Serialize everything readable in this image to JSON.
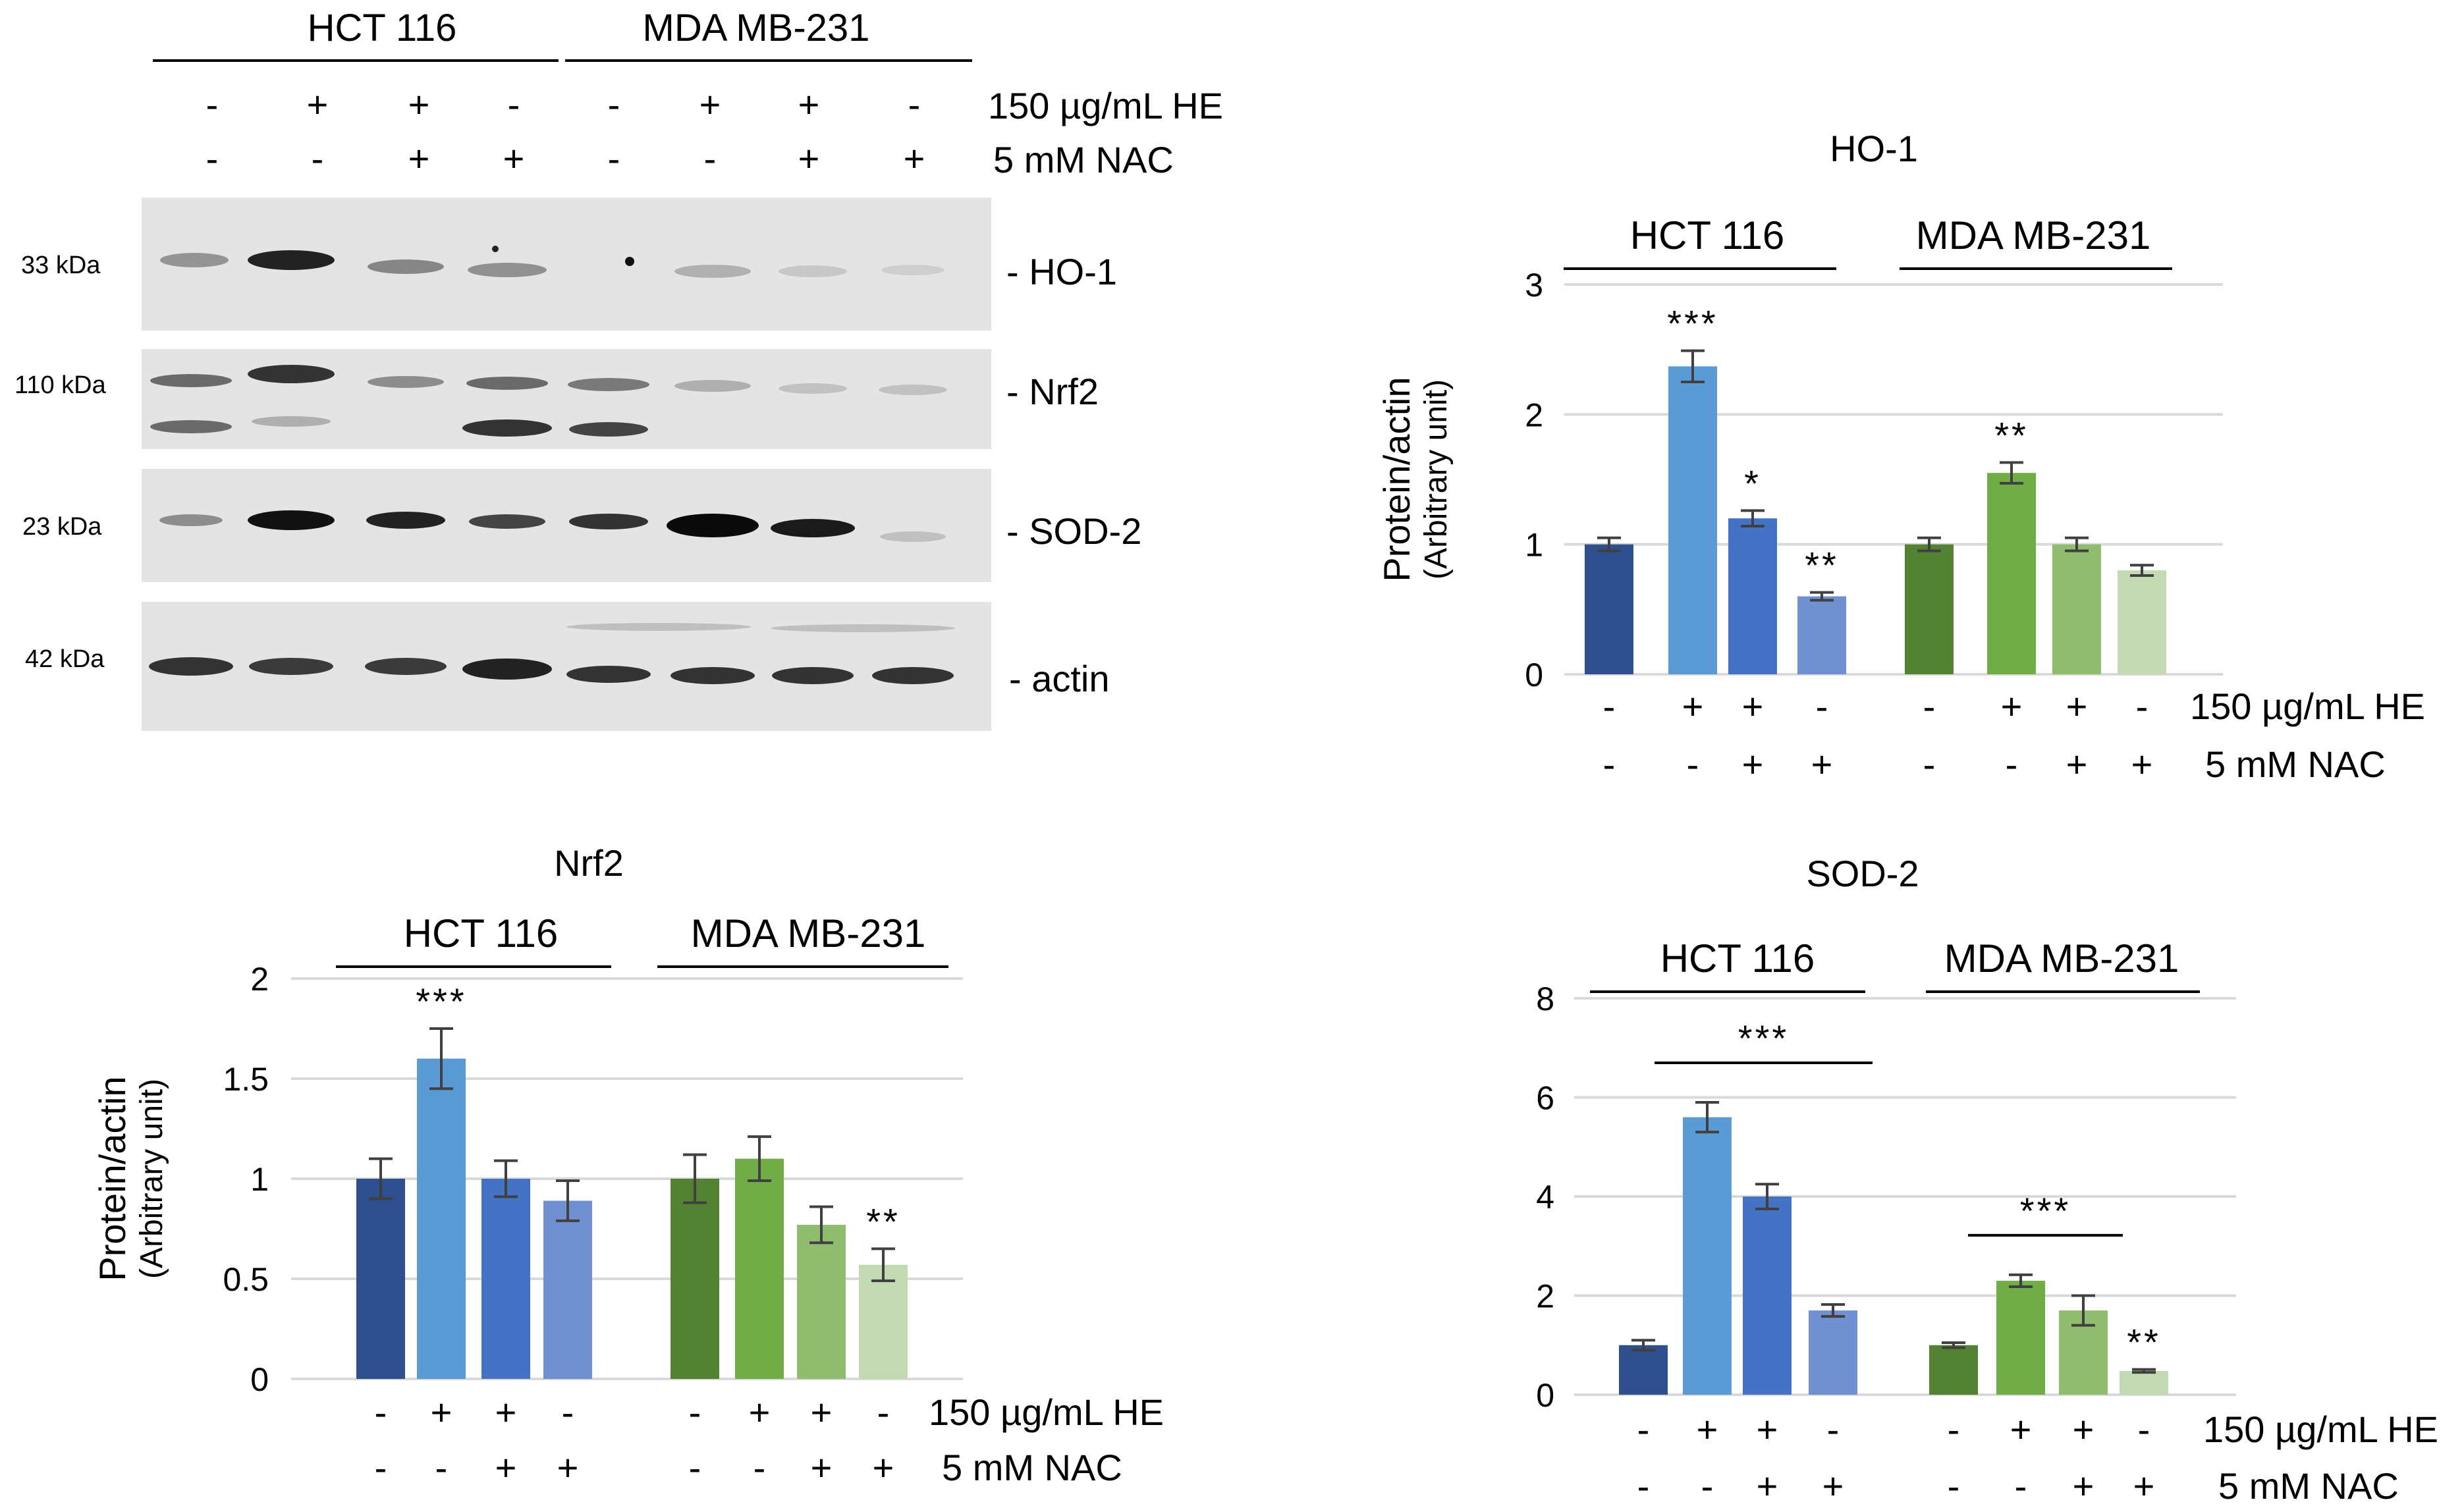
{
  "colors": {
    "hct": [
      "#2F4F8F",
      "#5B9BD5",
      "#4472C4",
      "#7190D2"
    ],
    "mda": [
      "#548235",
      "#70AD47",
      "#8FBC6E",
      "#C3D9B3"
    ],
    "axis": "#d9d9d9",
    "text": "#000000",
    "blot_bg": "#e6e6e6"
  },
  "blot": {
    "cell_lines": [
      "HCT 116",
      "MDA MB-231"
    ],
    "he_row": [
      "-",
      "+",
      "+",
      "-",
      "-",
      "+",
      "+",
      "-"
    ],
    "nac_row": [
      "-",
      "-",
      "+",
      "+",
      "-",
      "-",
      "+",
      "+"
    ],
    "he_label": "150 µg/mL HE",
    "nac_label": "5 mM NAC",
    "rows": [
      {
        "kda": "33 kDa",
        "protein": "- HO-1"
      },
      {
        "kda": "110 kDa",
        "protein": "- Nrf2"
      },
      {
        "kda": "23 kDa",
        "protein": "- SOD-2"
      },
      {
        "kda": "42 kDa",
        "protein": "- actin"
      }
    ]
  },
  "chart_data": [
    {
      "type": "bar",
      "title": "HO-1",
      "ylabel_1": "Protein/actin",
      "ylabel_2": "(Arbitrary unit)",
      "ylim": [
        0,
        3
      ],
      "yticks": [
        "0",
        "1",
        "2",
        "3"
      ],
      "groups": [
        "HCT 116",
        "MDA MB-231"
      ],
      "he_row": [
        "-",
        "+",
        "+",
        "-",
        "-",
        "+",
        "+",
        "-"
      ],
      "nac_row": [
        "-",
        "-",
        "+",
        "+",
        "-",
        "-",
        "+",
        "+"
      ],
      "he_label": "150 µg/mL HE",
      "nac_label": "5 mM NAC",
      "values": [
        1.0,
        2.37,
        1.2,
        0.6,
        1.0,
        1.55,
        1.0,
        0.8
      ],
      "errors": [
        0.05,
        0.12,
        0.06,
        0.03,
        0.05,
        0.08,
        0.05,
        0.04
      ],
      "sig": [
        "",
        "***",
        "*",
        "**",
        "",
        "**",
        "",
        ""
      ]
    },
    {
      "type": "bar",
      "title": "Nrf2",
      "ylabel_1": "Protein/actin",
      "ylabel_2": "(Arbitrary unit)",
      "ylim": [
        0,
        2
      ],
      "yticks": [
        "0",
        "0.5",
        "1",
        "1.5",
        "2"
      ],
      "groups": [
        "HCT 116",
        "MDA MB-231"
      ],
      "he_row": [
        "-",
        "+",
        "+",
        "-",
        "-",
        "+",
        "+",
        "-"
      ],
      "nac_row": [
        "-",
        "-",
        "+",
        "+",
        "-",
        "-",
        "+",
        "+"
      ],
      "he_label": "150 µg/mL HE",
      "nac_label": "5 mM NAC",
      "values": [
        1.0,
        1.6,
        1.0,
        0.89,
        1.0,
        1.1,
        0.77,
        0.57
      ],
      "errors": [
        0.1,
        0.15,
        0.09,
        0.1,
        0.12,
        0.11,
        0.09,
        0.08
      ],
      "sig": [
        "",
        "***",
        "",
        "",
        "",
        "",
        "",
        "**"
      ]
    },
    {
      "type": "bar",
      "title": "SOD-2",
      "ylabel_1": "",
      "ylabel_2": "",
      "ylim": [
        0,
        8
      ],
      "yticks": [
        "0",
        "2",
        "4",
        "6",
        "8"
      ],
      "groups": [
        "HCT 116",
        "MDA MB-231"
      ],
      "he_row": [
        "-",
        "+",
        "+",
        "-",
        "-",
        "+",
        "+",
        "-"
      ],
      "nac_row": [
        "-",
        "-",
        "+",
        "+",
        "-",
        "-",
        "+",
        "+"
      ],
      "he_label": "150 µg/mL HE",
      "nac_label": "5 mM NAC",
      "values": [
        1.0,
        5.6,
        4.0,
        1.7,
        1.0,
        2.3,
        1.7,
        0.48
      ],
      "errors": [
        0.1,
        0.3,
        0.25,
        0.12,
        0.05,
        0.12,
        0.3,
        0.03
      ],
      "sig": [
        "",
        "",
        "",
        "",
        "",
        "",
        "",
        "**"
      ],
      "brackets": [
        {
          "from": 1,
          "to": 3,
          "label": "***"
        },
        {
          "from": 5,
          "to": 6,
          "label": "***"
        }
      ]
    }
  ]
}
